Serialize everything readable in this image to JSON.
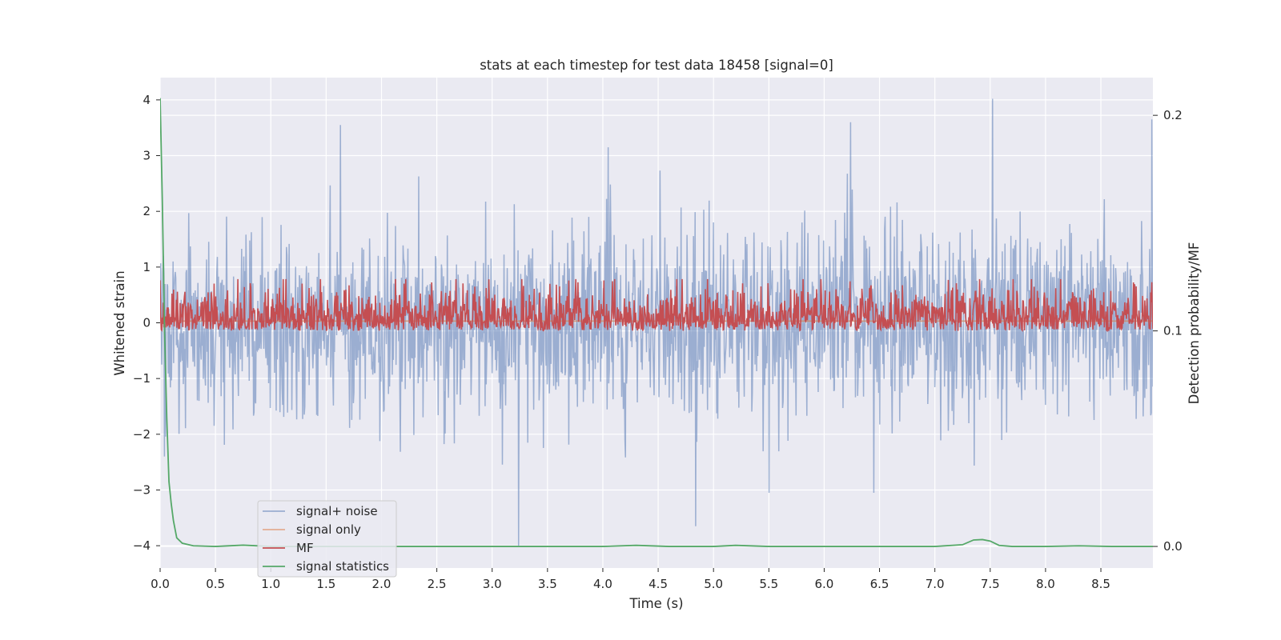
{
  "chart_data": {
    "type": "line",
    "title": "stats at each timestep for test data 18458 [signal=0]",
    "xlabel": "Time (s)",
    "ylabel": "Whitened strain",
    "y2label": "Detection probability/MF",
    "xlim": [
      0.0,
      8.97
    ],
    "ylim": [
      -4.4,
      4.4
    ],
    "y2lim": [
      -0.01,
      0.2175
    ],
    "xticks": [
      0.0,
      0.5,
      1.0,
      1.5,
      2.0,
      2.5,
      3.0,
      3.5,
      4.0,
      4.5,
      5.0,
      5.5,
      6.0,
      6.5,
      7.0,
      7.5,
      8.0,
      8.5
    ],
    "xtick_labels": [
      "0.0",
      "0.5",
      "1.0",
      "1.5",
      "2.0",
      "2.5",
      "3.0",
      "3.5",
      "4.0",
      "4.5",
      "5.0",
      "5.5",
      "6.0",
      "6.5",
      "7.0",
      "7.5",
      "8.0",
      "8.5"
    ],
    "yticks": [
      -4,
      -3,
      -2,
      -1,
      0,
      1,
      2,
      3,
      4
    ],
    "ytick_labels": [
      "−4",
      "−3",
      "−2",
      "−1",
      "0",
      "1",
      "2",
      "3",
      "4"
    ],
    "y2ticks": [
      0.0,
      0.1,
      0.2
    ],
    "y2tick_labels": [
      "0.0",
      "0.1",
      "0.2"
    ],
    "grid": true,
    "legend_position": "lower-left",
    "series": [
      {
        "name": "signal+ noise",
        "axis": "left",
        "color": "#4c72b0",
        "opacity": 0.5,
        "noise": {
          "samples": 1840,
          "sigma": 0.85,
          "seed": 18458
        },
        "peaks": [
          [
            1.63,
            3.55
          ],
          [
            4.05,
            3.15
          ],
          [
            6.24,
            3.6
          ],
          [
            7.52,
            4.02
          ],
          [
            8.96,
            3.65
          ],
          [
            3.24,
            -4.0
          ],
          [
            4.84,
            -3.65
          ],
          [
            5.5,
            -3.05
          ],
          [
            6.45,
            -3.05
          ],
          [
            0.04,
            -2.4
          ]
        ]
      },
      {
        "name": "signal only",
        "axis": "left",
        "color": "#dd8452",
        "opacity": 0.6,
        "constant": 0.03
      },
      {
        "name": "MF",
        "axis": "right",
        "color": "#c44e52",
        "noise": {
          "samples": 1840,
          "seed": 7
        },
        "baseline": 0.1,
        "amplitude_max": 0.024
      },
      {
        "name": "signal statistics",
        "axis": "right",
        "color": "#55a868",
        "x": [
          0.0,
          0.02,
          0.04,
          0.06,
          0.08,
          0.1,
          0.12,
          0.15,
          0.2,
          0.3,
          0.5,
          0.75,
          1.0,
          1.5,
          2.0,
          3.0,
          4.0,
          4.3,
          4.6,
          5.0,
          5.2,
          5.5,
          6.0,
          7.0,
          7.25,
          7.35,
          7.43,
          7.5,
          7.58,
          7.7,
          8.0,
          8.3,
          8.6,
          8.97
        ],
        "y": [
          0.208,
          0.16,
          0.1,
          0.06,
          0.03,
          0.02,
          0.012,
          0.004,
          0.0015,
          0.0003,
          0.0,
          0.0006,
          0.0,
          0.0,
          0.0,
          0.0,
          0.0,
          0.0005,
          0.0,
          0.0,
          0.0005,
          0.0,
          0.0,
          0.0,
          0.0008,
          0.003,
          0.0032,
          0.0025,
          0.0005,
          0.0,
          0.0,
          0.0003,
          0.0,
          0.0
        ]
      }
    ]
  }
}
